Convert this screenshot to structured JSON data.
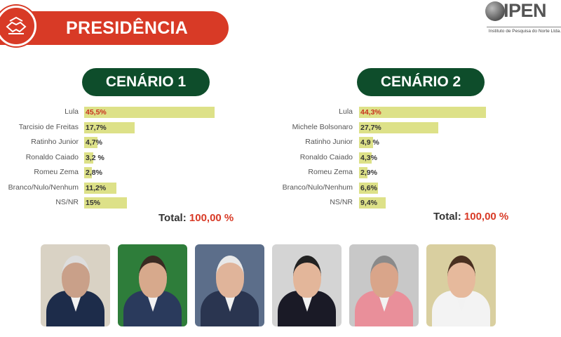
{
  "header": {
    "title": "PRESIDÊNCIA"
  },
  "logo": {
    "name": "IPEN",
    "subtitle": "Instituto de Pesquisa do Norte Ltda."
  },
  "icons": {
    "emblem": "handshake-icon",
    "logo": "globe-icon"
  },
  "colors": {
    "banner": "#d83a26",
    "pill": "#0e4d2b",
    "bar": "#dde188",
    "lead_value": "#c8321f"
  },
  "total_label": "Total:",
  "chart_data": [
    {
      "type": "bar",
      "title": "CENÁRIO 1",
      "categories": [
        "Lula",
        "Tarcisio de Freitas",
        "Ratinho Junior",
        "Ronaldo Caiado",
        "Romeu Zema",
        "Branco/Nulo/Nenhum",
        "NS/NR"
      ],
      "values": [
        45.5,
        17.7,
        4.7,
        3.2,
        2.8,
        11.2,
        15
      ],
      "value_labels": [
        "45,5%",
        "17,7%",
        "4,7%",
        "3,2 %",
        "2,8%",
        "11,2%",
        "15%"
      ],
      "total": "100,00 %"
    },
    {
      "type": "bar",
      "title": "CENÁRIO 2",
      "categories": [
        "Lula",
        "Michele Bolsonaro",
        "Ratinho Junior",
        "Ronaldo Caiado",
        "Romeu Zema",
        "Branco/Nulo/Nenhum",
        "NS/NR"
      ],
      "values": [
        44.3,
        27.7,
        4.9,
        4.3,
        2.9,
        6.6,
        9.4
      ],
      "value_labels": [
        "44,3%",
        "27,7%",
        "4,9 %",
        "4,3%",
        "2,9%",
        "6,6%",
        "9,4%"
      ],
      "total": "100,00 %"
    }
  ],
  "photos": [
    {
      "name": "candidate-photo-lula",
      "bg": "#d9d2c4",
      "skin": "#c9a089",
      "suit": "#1d2c4a",
      "hair": "#ddd"
    },
    {
      "name": "candidate-photo-tarcisio",
      "bg": "#2e7d3a",
      "skin": "#d7a98c",
      "suit": "#2a3a5c",
      "hair": "#3a2a22"
    },
    {
      "name": "candidate-photo-caiado",
      "bg": "#5c6e8a",
      "skin": "#e0b49a",
      "suit": "#2a3550",
      "hair": "#e8e8e8"
    },
    {
      "name": "candidate-photo-ratinho",
      "bg": "#d4d4d4",
      "skin": "#e3b69a",
      "suit": "#1a1a26",
      "hair": "#222"
    },
    {
      "name": "candidate-photo-zema",
      "bg": "#c8c8c8",
      "skin": "#d9a58a",
      "suit": "#e98f9a",
      "hair": "#8a8a8a"
    },
    {
      "name": "candidate-photo-michele",
      "bg": "#d9cfa0",
      "skin": "#e6b99c",
      "suit": "#f3f3f3",
      "hair": "#4a3020"
    }
  ]
}
